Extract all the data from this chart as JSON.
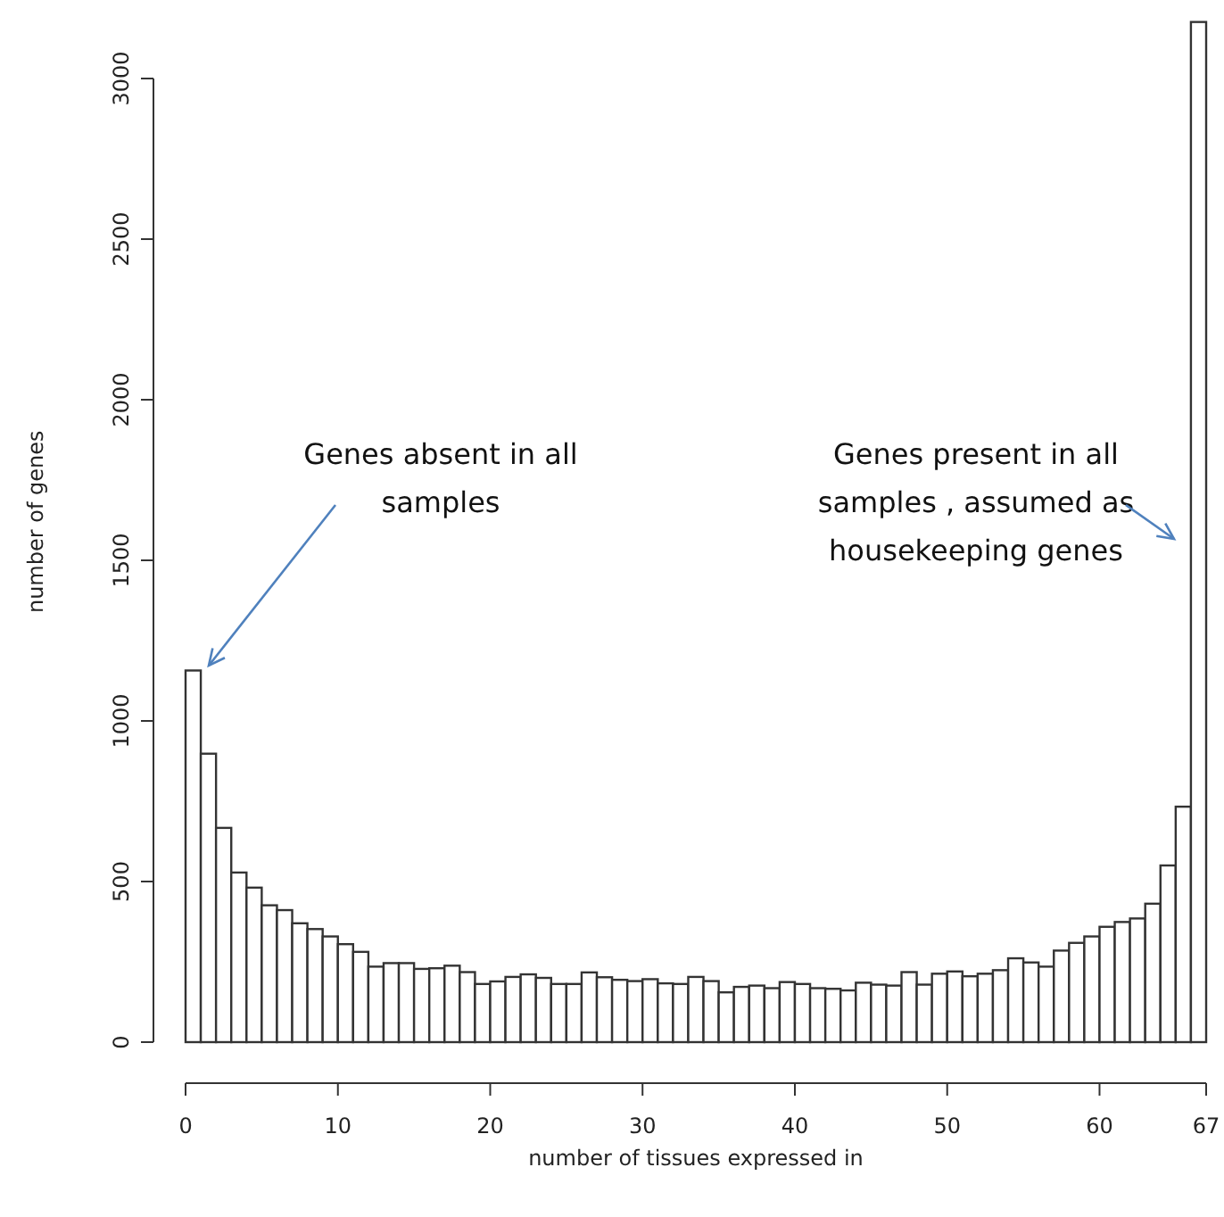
{
  "chart_data": {
    "type": "histogram",
    "xlabel": "number of tissues expressed in",
    "ylabel": "number of genes",
    "bins": [
      0,
      1,
      2,
      3,
      4,
      5,
      6,
      7,
      8,
      9,
      10,
      11,
      12,
      13,
      14,
      15,
      16,
      17,
      18,
      19,
      20,
      21,
      22,
      23,
      24,
      25,
      26,
      27,
      28,
      29,
      30,
      31,
      32,
      33,
      34,
      35,
      36,
      37,
      38,
      39,
      40,
      41,
      42,
      43,
      44,
      45,
      46,
      47,
      48,
      49,
      50,
      51,
      52,
      53,
      54,
      55,
      56,
      57,
      58,
      59,
      60,
      61,
      62,
      63,
      64,
      65,
      66,
      67
    ],
    "values": [
      1157,
      898,
      667,
      528,
      481,
      426,
      411,
      370,
      352,
      329,
      305,
      281,
      235,
      246,
      246,
      228,
      230,
      238,
      218,
      181,
      189,
      203,
      211,
      200,
      181,
      181,
      217,
      202,
      194,
      190,
      196,
      183,
      181,
      203,
      190,
      155,
      172,
      176,
      168,
      187,
      181,
      168,
      166,
      161,
      185,
      179,
      176,
      218,
      179,
      213,
      220,
      205,
      213,
      224,
      261,
      248,
      235,
      285,
      309,
      329,
      359,
      374,
      385,
      431,
      550,
      733,
      3176
    ],
    "color": "#ffffff",
    "xlim": [
      0,
      67
    ],
    "xticks": [
      0,
      10,
      20,
      30,
      40,
      50,
      60,
      67
    ],
    "ylim": [
      0,
      3240
    ],
    "yticks": [
      0,
      500,
      1000,
      1500,
      2000,
      2500,
      3000
    ],
    "grid": false,
    "annotations": [
      "Genes absent in all\nsamples",
      "Genes present in all\nsamples , assumed as\nhousekeeping genes"
    ]
  }
}
